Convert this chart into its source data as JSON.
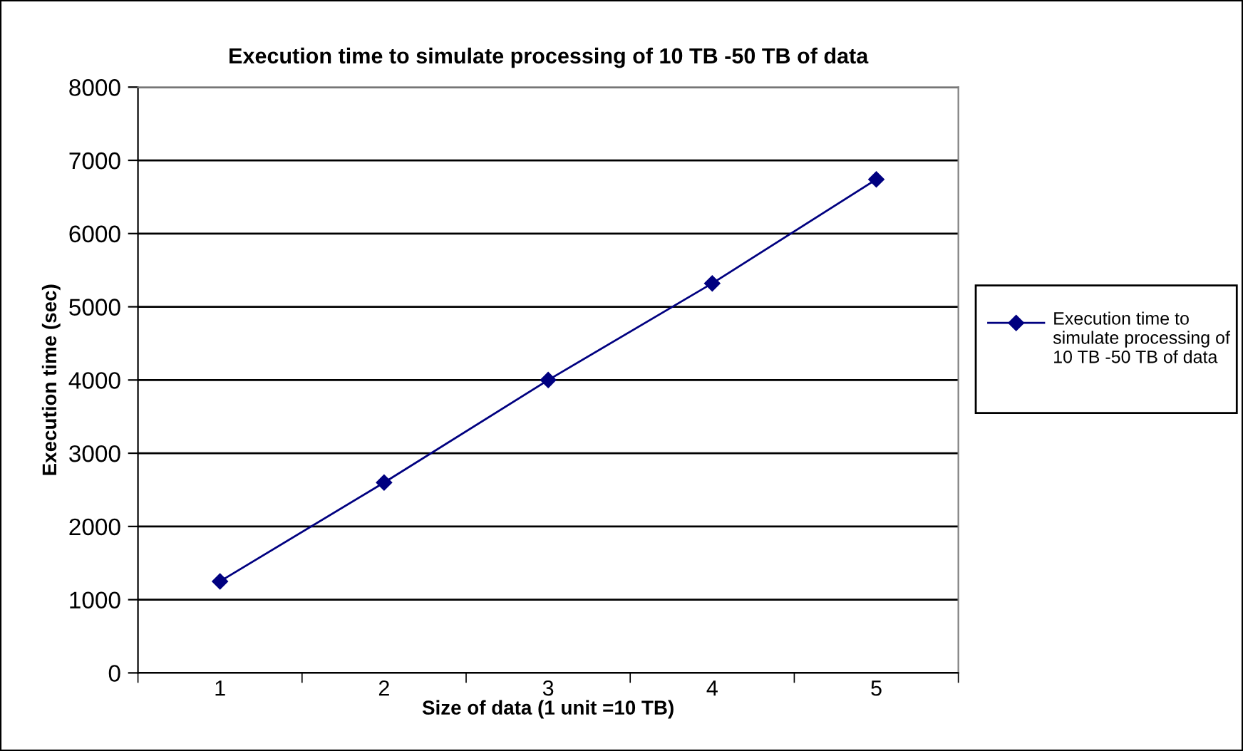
{
  "chart_data": {
    "type": "line",
    "title": "Execution time to simulate processing of 10 TB -50 TB of data",
    "xlabel": "Size of data (1 unit =10 TB)",
    "ylabel": "Execution time (sec)",
    "categories": [
      "1",
      "2",
      "3",
      "4",
      "5"
    ],
    "series": [
      {
        "name": "Execution time to simulate processing of 10 TB -50 TB of data",
        "color": "#000080",
        "values": [
          1250,
          2600,
          4000,
          5320,
          6740
        ]
      }
    ],
    "ylim": [
      0,
      8000
    ],
    "yticks": [
      0,
      1000,
      2000,
      3000,
      4000,
      5000,
      6000,
      7000,
      8000
    ],
    "grid": "y",
    "legend": "right",
    "marker": "diamond",
    "line_style": "solid"
  }
}
